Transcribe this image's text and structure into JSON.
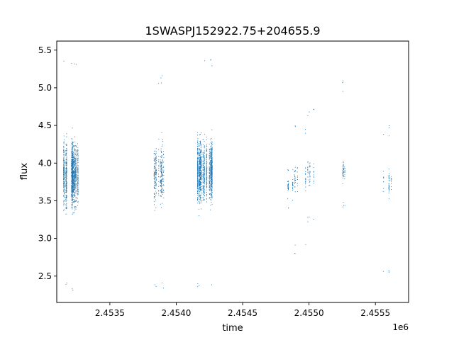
{
  "chart_data": {
    "type": "scatter",
    "title": "1SWASPJ152922.75+204655.9",
    "xlabel": "time",
    "ylabel": "flux",
    "x_offset_label": "1e6",
    "xlim": [
      2453100,
      2455750
    ],
    "ylim": [
      2.15,
      5.62
    ],
    "x_ticks": [
      2453500,
      2454000,
      2454500,
      2455000,
      2455500
    ],
    "x_tick_labels": [
      "2.4535",
      "2.4540",
      "2.4545",
      "2.4550",
      "2.4555"
    ],
    "y_ticks": [
      2.5,
      3.0,
      3.5,
      4.0,
      4.5,
      5.0,
      5.5
    ],
    "y_tick_labels": [
      "2.5",
      "3.0",
      "3.5",
      "4.0",
      "4.5",
      "5.0",
      "5.5"
    ],
    "grid": false,
    "marker_color": "#1f77b4",
    "series": [
      {
        "observing_seasons": [
          {
            "x_start": 2453130,
            "x_end": 2453260,
            "median_flux": 3.85,
            "flux_min": 2.28,
            "flux_max": 5.38,
            "density": "very high"
          },
          {
            "x_start": 2453830,
            "x_end": 2453920,
            "median_flux": 3.85,
            "flux_min": 2.33,
            "flux_max": 5.2,
            "density": "medium"
          },
          {
            "x_start": 2454160,
            "x_end": 2454270,
            "median_flux": 3.9,
            "flux_min": 2.3,
            "flux_max": 5.38,
            "density": "very high"
          },
          {
            "x_start": 2454830,
            "x_end": 2454880,
            "median_flux": 3.7,
            "flux_min": 3.4,
            "flux_max": 4.0,
            "density": "low"
          },
          {
            "x_start": 2454890,
            "x_end": 2454980,
            "median_flux": 3.8,
            "flux_min": 2.78,
            "flux_max": 4.5,
            "density": "low"
          },
          {
            "x_start": 2454990,
            "x_end": 2455040,
            "median_flux": 3.85,
            "flux_min": 3.2,
            "flux_max": 4.77,
            "density": "low"
          },
          {
            "x_start": 2455250,
            "x_end": 2455280,
            "median_flux": 3.9,
            "flux_min": 3.4,
            "flux_max": 5.1,
            "density": "low"
          },
          {
            "x_start": 2455540,
            "x_end": 2455640,
            "median_flux": 3.75,
            "flux_min": 2.5,
            "flux_max": 4.5,
            "density": "low"
          }
        ]
      }
    ]
  }
}
